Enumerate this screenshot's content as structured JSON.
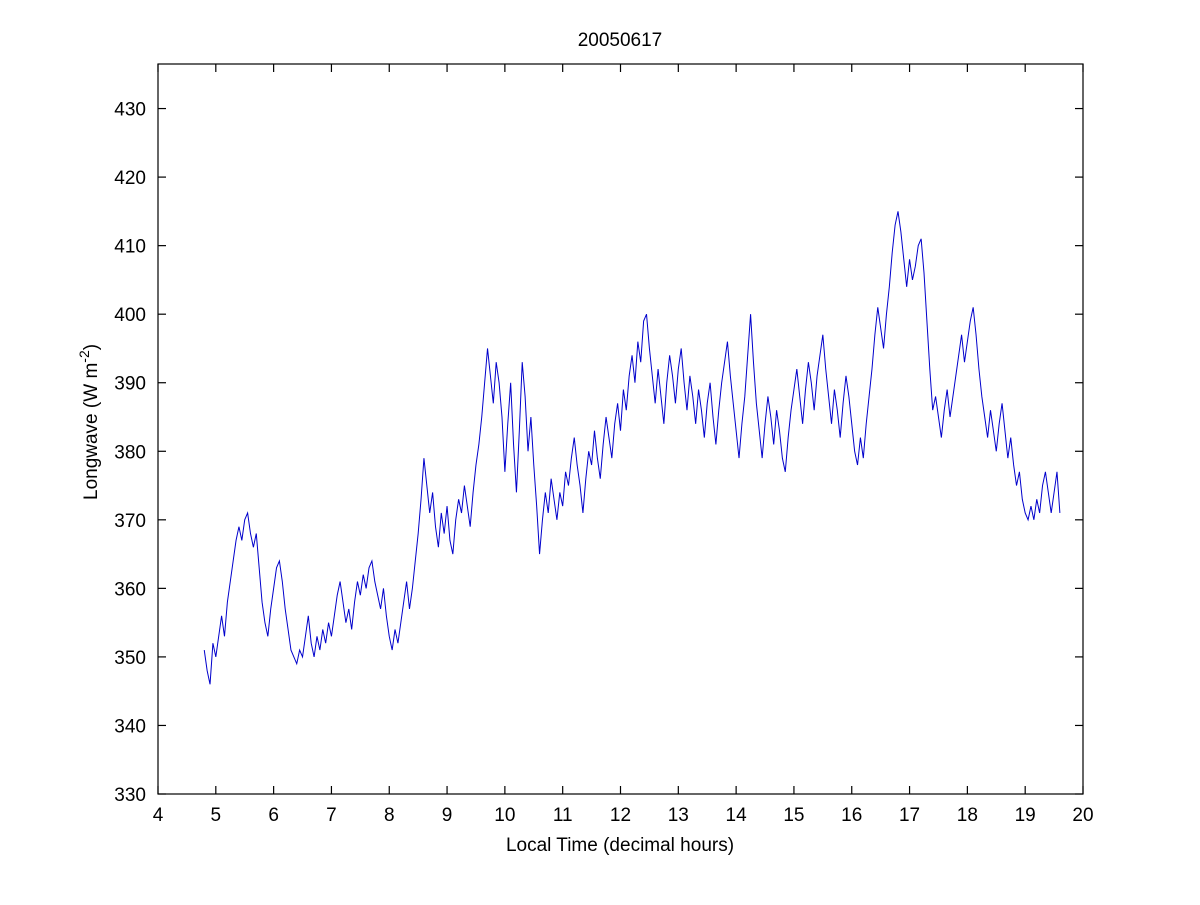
{
  "chart_data": {
    "type": "line",
    "title": "20050617",
    "xlabel": "Local Time (decimal hours)",
    "ylabel_prefix": "Longwave (W m",
    "ylabel_sup": "-2",
    "ylabel_suffix": ")",
    "xlim": [
      4,
      20
    ],
    "ylim": [
      330,
      436.5
    ],
    "xticks": [
      4,
      5,
      6,
      7,
      8,
      9,
      10,
      11,
      12,
      13,
      14,
      15,
      16,
      17,
      18,
      19,
      20
    ],
    "yticks": [
      330,
      340,
      350,
      360,
      370,
      380,
      390,
      400,
      410,
      420,
      430
    ],
    "grid": false,
    "legend": null,
    "line_color": "#0000CC",
    "series": [
      {
        "name": "longwave",
        "x_start": 4.8,
        "x_step": 0.05,
        "values": [
          351,
          348,
          346,
          352,
          350,
          353,
          356,
          353,
          358,
          361,
          364,
          367,
          369,
          367,
          370,
          371,
          368,
          366,
          368,
          363,
          358,
          355,
          353,
          357,
          360,
          363,
          364,
          361,
          357,
          354,
          351,
          350,
          349,
          351,
          350,
          353,
          356,
          352,
          350,
          353,
          351,
          354,
          352,
          355,
          353,
          356,
          359,
          361,
          358,
          355,
          357,
          354,
          358,
          361,
          359,
          362,
          360,
          363,
          364,
          361,
          359,
          357,
          360,
          356,
          353,
          351,
          354,
          352,
          355,
          358,
          361,
          357,
          360,
          364,
          368,
          373,
          379,
          375,
          371,
          374,
          369,
          366,
          371,
          368,
          372,
          367,
          365,
          370,
          373,
          371,
          375,
          372,
          369,
          374,
          378,
          381,
          385,
          390,
          395,
          391,
          387,
          393,
          390,
          385,
          377,
          384,
          390,
          381,
          374,
          383,
          393,
          388,
          380,
          385,
          378,
          372,
          365,
          370,
          374,
          371,
          376,
          373,
          370,
          374,
          372,
          377,
          375,
          379,
          382,
          378,
          375,
          371,
          376,
          380,
          378,
          383,
          379,
          376,
          381,
          385,
          382,
          379,
          384,
          387,
          383,
          389,
          386,
          391,
          394,
          390,
          396,
          393,
          399,
          400,
          395,
          391,
          387,
          392,
          388,
          384,
          390,
          394,
          391,
          387,
          392,
          395,
          390,
          386,
          391,
          388,
          384,
          389,
          386,
          382,
          387,
          390,
          385,
          381,
          386,
          390,
          393,
          396,
          391,
          387,
          383,
          379,
          384,
          388,
          394,
          400,
          393,
          387,
          383,
          379,
          384,
          388,
          385,
          381,
          386,
          383,
          379,
          377,
          382,
          386,
          389,
          392,
          388,
          384,
          389,
          393,
          390,
          386,
          391,
          394,
          397,
          392,
          388,
          384,
          389,
          386,
          382,
          387,
          391,
          388,
          384,
          380,
          378,
          382,
          379,
          384,
          388,
          392,
          397,
          401,
          398,
          395,
          400,
          404,
          409,
          413,
          415,
          412,
          408,
          404,
          408,
          405,
          407,
          410,
          411,
          406,
          399,
          392,
          386,
          388,
          385,
          382,
          386,
          389,
          385,
          388,
          391,
          394,
          397,
          393,
          396,
          399,
          401,
          397,
          392,
          388,
          385,
          382,
          386,
          383,
          380,
          384,
          387,
          383,
          379,
          382,
          378,
          375,
          377,
          373,
          371,
          370,
          372,
          370,
          373,
          371,
          375,
          377,
          374,
          371,
          374,
          377,
          371
        ]
      }
    ]
  }
}
